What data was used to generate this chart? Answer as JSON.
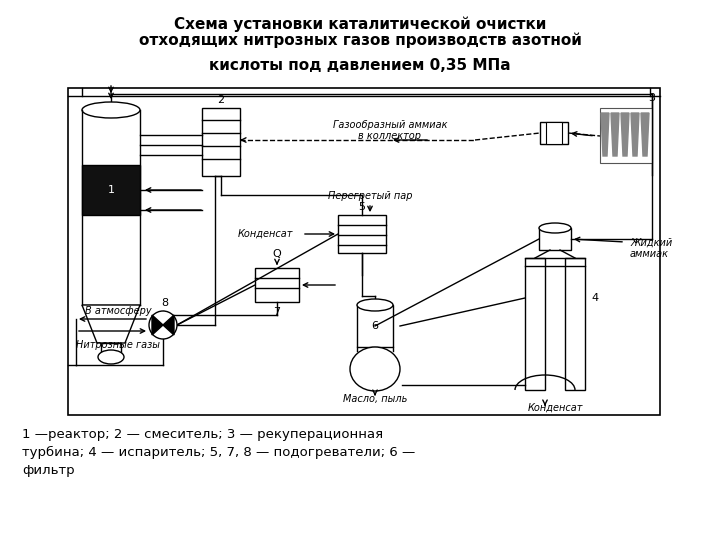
{
  "title_line1": "Схема установки каталитической очистки",
  "title_line2": "отходящих нитрозных газов производств азотной",
  "title_line3": "кислоты под давлением 0,35 МПа",
  "caption": "1 —реактор; 2 — смеситель; 3 — рекуперационная\nтурбина; 4 — испаритель; 5, 7, 8 — подогреватели; 6 —\nфильтр",
  "bg_color": "#ffffff"
}
